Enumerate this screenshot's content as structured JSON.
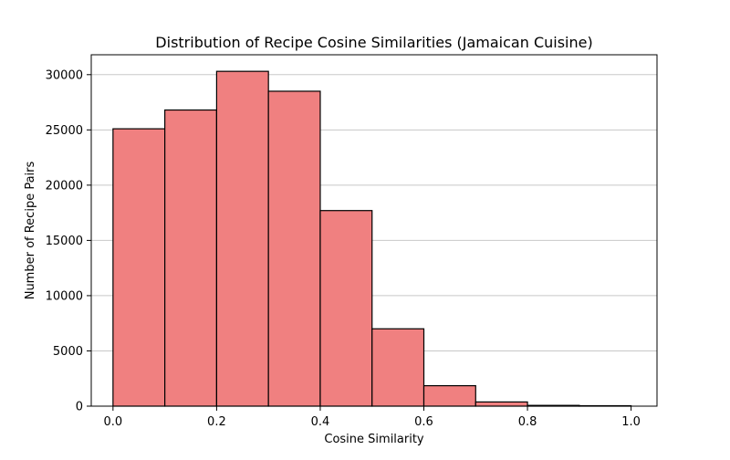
{
  "chart_data": {
    "type": "bar",
    "title": "Distribution of Recipe Cosine Similarities (Jamaican Cuisine)",
    "xlabel": "Cosine Similarity",
    "ylabel": "Number of Recipe Pairs",
    "bins": [
      {
        "start": 0.0,
        "end": 0.1,
        "count": 25100
      },
      {
        "start": 0.1,
        "end": 0.2,
        "count": 26800
      },
      {
        "start": 0.2,
        "end": 0.3,
        "count": 30300
      },
      {
        "start": 0.3,
        "end": 0.4,
        "count": 28500
      },
      {
        "start": 0.4,
        "end": 0.5,
        "count": 17700
      },
      {
        "start": 0.5,
        "end": 0.6,
        "count": 7000
      },
      {
        "start": 0.6,
        "end": 0.7,
        "count": 1850
      },
      {
        "start": 0.7,
        "end": 0.8,
        "count": 380
      },
      {
        "start": 0.8,
        "end": 0.9,
        "count": 70
      },
      {
        "start": 0.9,
        "end": 1.0,
        "count": 40
      }
    ],
    "xlim": [
      -0.042,
      1.05
    ],
    "ylim": [
      0,
      31800
    ],
    "xticks": [
      0.0,
      0.2,
      0.4,
      0.6,
      0.8,
      1.0
    ],
    "xtick_labels": [
      "0.0",
      "0.2",
      "0.4",
      "0.6",
      "0.8",
      "1.0"
    ],
    "yticks": [
      0,
      5000,
      10000,
      15000,
      20000,
      25000,
      30000
    ],
    "ytick_labels": [
      "0",
      "5000",
      "10000",
      "15000",
      "20000",
      "25000",
      "30000"
    ],
    "grid": "y",
    "colors": {
      "bar_fill": "#f08080",
      "bar_edge": "#000000",
      "grid": "#c8c8c8",
      "axes": "#000000"
    }
  }
}
